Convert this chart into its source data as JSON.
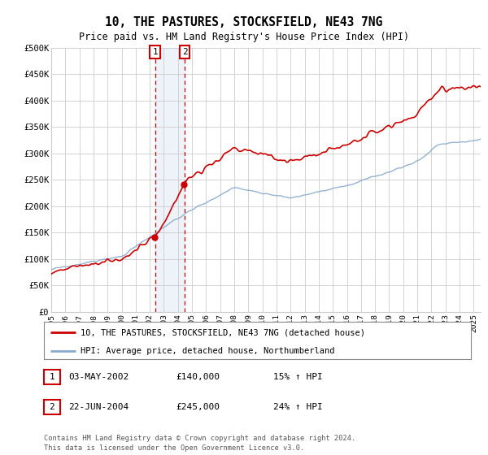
{
  "title": "10, THE PASTURES, STOCKSFIELD, NE43 7NG",
  "subtitle": "Price paid vs. HM Land Registry's House Price Index (HPI)",
  "ylabel_ticks": [
    "£0",
    "£50K",
    "£100K",
    "£150K",
    "£200K",
    "£250K",
    "£300K",
    "£350K",
    "£400K",
    "£450K",
    "£500K"
  ],
  "ytick_values": [
    0,
    50000,
    100000,
    150000,
    200000,
    250000,
    300000,
    350000,
    400000,
    450000,
    500000
  ],
  "ylim": [
    0,
    500000
  ],
  "xlim_start": 1995.0,
  "xlim_end": 2025.5,
  "transaction1": {
    "date_x": 2002.37,
    "price": 140000,
    "label": "1"
  },
  "transaction2": {
    "date_x": 2004.48,
    "price": 245000,
    "label": "2"
  },
  "legend_line1": "10, THE PASTURES, STOCKSFIELD, NE43 7NG (detached house)",
  "legend_line2": "HPI: Average price, detached house, Northumberland",
  "table_row1": [
    "1",
    "03-MAY-2002",
    "£140,000",
    "15% ↑ HPI"
  ],
  "table_row2": [
    "2",
    "22-JUN-2004",
    "£245,000",
    "24% ↑ HPI"
  ],
  "footer": "Contains HM Land Registry data © Crown copyright and database right 2024.\nThis data is licensed under the Open Government Licence v3.0.",
  "red_color": "#cc0000",
  "blue_color": "#88aacc",
  "shade_color": "#ccddf0",
  "grid_color": "#cccccc",
  "background_color": "#ffffff"
}
